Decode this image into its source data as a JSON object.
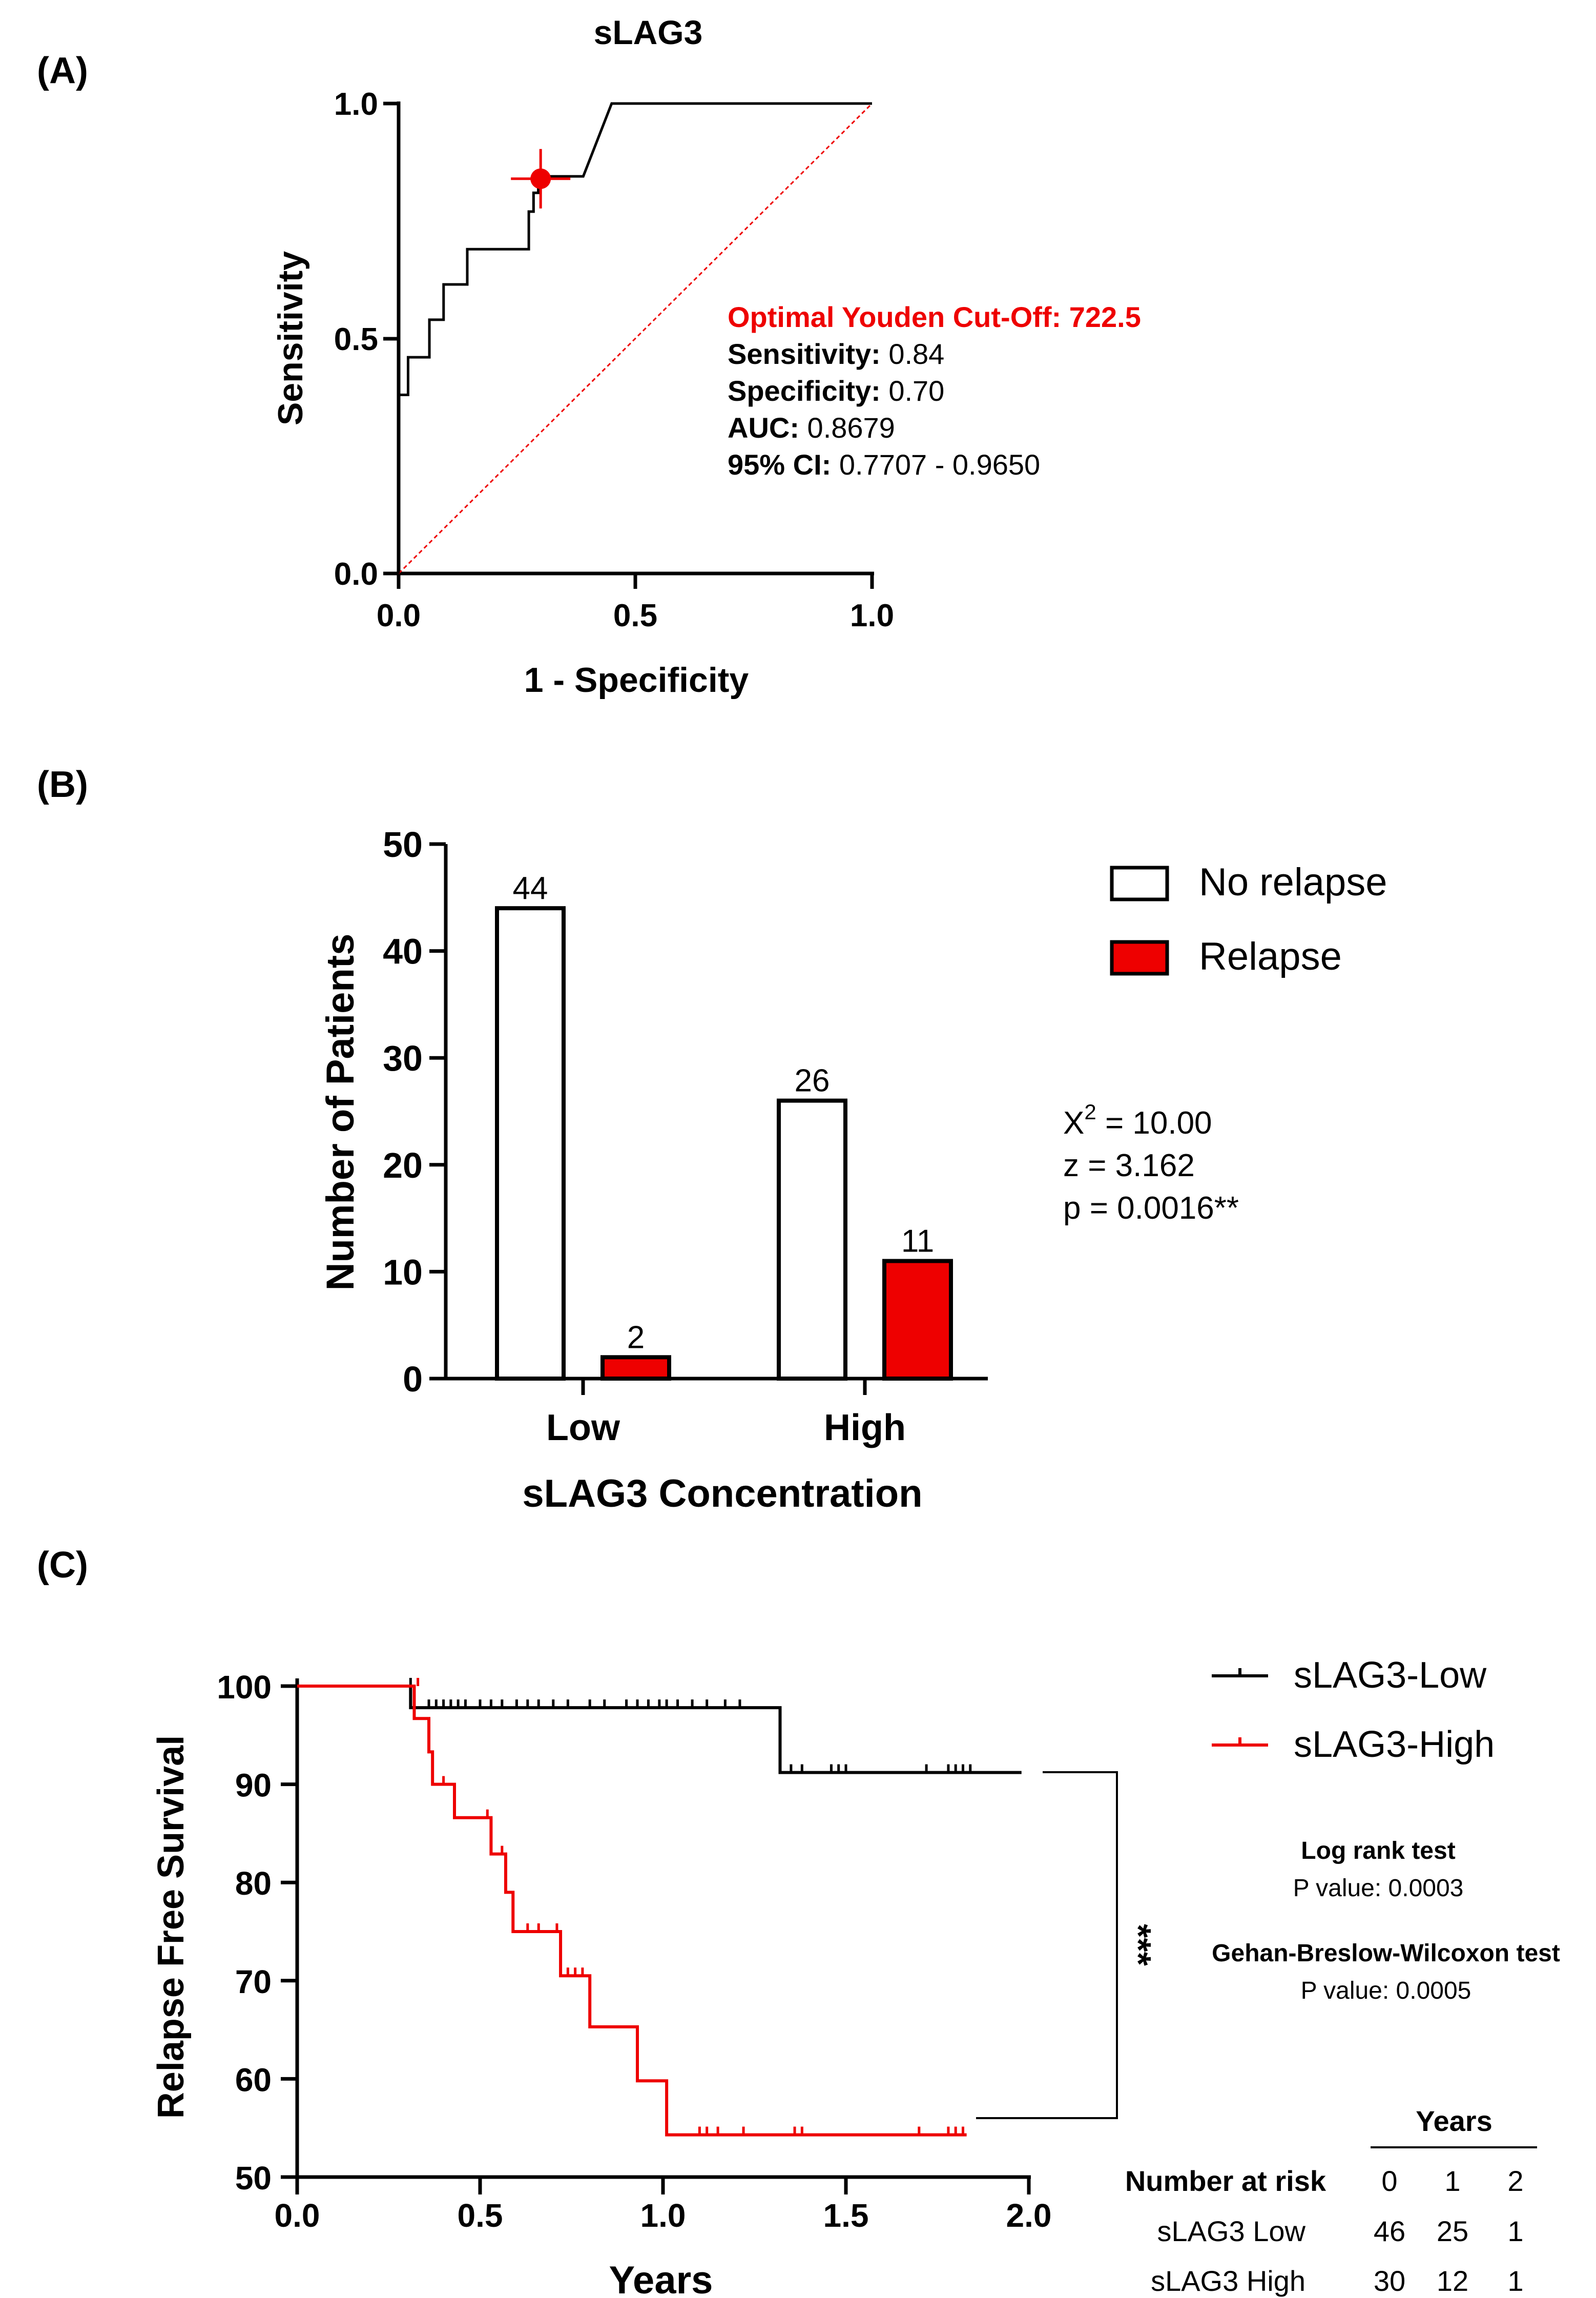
{
  "chart_data": [
    {
      "panel": "(A)",
      "type": "line",
      "title": "sLAG3",
      "xlabel": "1 - Specificity",
      "ylabel": "Sensitivity",
      "xlim": [
        0,
        1
      ],
      "ylim": [
        0,
        1
      ],
      "xticks": [
        "0.0",
        "0.5",
        "1.0"
      ],
      "yticks": [
        "0.0",
        "0.5",
        "1.0"
      ],
      "roc_curve": [
        [
          0,
          0
        ],
        [
          0,
          0.38
        ],
        [
          0.02,
          0.38
        ],
        [
          0.02,
          0.46
        ],
        [
          0.065,
          0.46
        ],
        [
          0.065,
          0.54
        ],
        [
          0.095,
          0.54
        ],
        [
          0.095,
          0.615
        ],
        [
          0.145,
          0.615
        ],
        [
          0.145,
          0.69
        ],
        [
          0.275,
          0.69
        ],
        [
          0.275,
          0.77
        ],
        [
          0.285,
          0.77
        ],
        [
          0.285,
          0.81
        ],
        [
          0.295,
          0.81
        ],
        [
          0.295,
          0.845
        ],
        [
          0.39,
          0.845
        ],
        [
          0.45,
          1.0
        ],
        [
          1.0,
          1.0
        ]
      ],
      "reference_line": [
        [
          0,
          0
        ],
        [
          1,
          1
        ]
      ],
      "optimal_point": {
        "x": 0.3,
        "y": 0.84
      },
      "annotation": {
        "cutoff": "Optimal Youden Cut-Off: 722.5",
        "sensitivity_label": "Sensitivity:",
        "sensitivity_value": "0.84",
        "specificity_label": "Specificity:",
        "specificity_value": "0.70",
        "auc_label": "AUC:",
        "auc_value": "0.8679",
        "ci_label": "95% CI:",
        "ci_value": "0.7707 - 0.9650"
      },
      "colors": {
        "curve": "#000000",
        "reference": "#ee0000",
        "point": "#ee0000",
        "cutoff_text": "#ee0000"
      }
    },
    {
      "panel": "(B)",
      "type": "bar",
      "categories": [
        "Low",
        "High"
      ],
      "series": [
        {
          "name": "No relapse",
          "values": [
            44,
            26
          ],
          "color": "#ffffff"
        },
        {
          "name": "Relapse",
          "values": [
            2,
            11
          ],
          "color": "#ee0000"
        }
      ],
      "data_labels": [
        [
          "44",
          "2"
        ],
        [
          "26",
          "11"
        ]
      ],
      "xlabel": "sLAG3 Concentration",
      "ylabel": "Number of Patients",
      "ylim": [
        0,
        50
      ],
      "yticks": [
        "0",
        "10",
        "20",
        "30",
        "40",
        "50"
      ],
      "legend_position": "top-right",
      "stats": {
        "chi_prefix": "X",
        "chi_sup": "2",
        "chi_value": " = 10.00",
        "z": "z = 3.162",
        "p": "p = 0.0016**"
      }
    },
    {
      "panel": "(C)",
      "type": "line",
      "xlabel": "Years",
      "ylabel": "Relapse Free Survival",
      "xlim": [
        0,
        2
      ],
      "ylim": [
        50,
        100
      ],
      "xticks": [
        "0.0",
        "0.5",
        "1.0",
        "1.5",
        "2.0"
      ],
      "yticks": [
        "50",
        "60",
        "70",
        "80",
        "90",
        "100"
      ],
      "series": [
        {
          "name": "sLAG3-Low",
          "color": "#000000",
          "steps": [
            [
              0,
              100
            ],
            [
              0.31,
              100
            ],
            [
              0.31,
              97.8
            ],
            [
              1.32,
              97.8
            ],
            [
              1.32,
              91.2
            ],
            [
              1.98,
              91.2
            ]
          ],
          "censors": [
            [
              0.31,
              100
            ],
            [
              0.36,
              97.8
            ],
            [
              0.38,
              97.8
            ],
            [
              0.4,
              97.8
            ],
            [
              0.42,
              97.8
            ],
            [
              0.44,
              97.8
            ],
            [
              0.46,
              97.8
            ],
            [
              0.5,
              97.8
            ],
            [
              0.53,
              97.8
            ],
            [
              0.56,
              97.8
            ],
            [
              0.6,
              97.8
            ],
            [
              0.63,
              97.8
            ],
            [
              0.66,
              97.8
            ],
            [
              0.7,
              97.8
            ],
            [
              0.74,
              97.8
            ],
            [
              0.8,
              97.8
            ],
            [
              0.84,
              97.8
            ],
            [
              0.9,
              97.8
            ],
            [
              0.93,
              97.8
            ],
            [
              0.96,
              97.8
            ],
            [
              0.99,
              97.8
            ],
            [
              1.01,
              97.8
            ],
            [
              1.04,
              97.8
            ],
            [
              1.08,
              97.8
            ],
            [
              1.12,
              97.8
            ],
            [
              1.17,
              97.8
            ],
            [
              1.21,
              97.8
            ],
            [
              1.35,
              91.2
            ],
            [
              1.38,
              91.2
            ],
            [
              1.46,
              91.2
            ],
            [
              1.48,
              91.2
            ],
            [
              1.5,
              91.2
            ],
            [
              1.72,
              91.2
            ],
            [
              1.78,
              91.2
            ],
            [
              1.8,
              91.2
            ],
            [
              1.82,
              91.2
            ],
            [
              1.84,
              91.2
            ]
          ]
        },
        {
          "name": "sLAG3-High",
          "color": "#ee0000",
          "steps": [
            [
              0,
              100
            ],
            [
              0.32,
              100
            ],
            [
              0.32,
              96.7
            ],
            [
              0.36,
              96.7
            ],
            [
              0.36,
              93.3
            ],
            [
              0.37,
              93.3
            ],
            [
              0.37,
              90.0
            ],
            [
              0.43,
              90.0
            ],
            [
              0.43,
              86.6
            ],
            [
              0.53,
              86.6
            ],
            [
              0.53,
              82.9
            ],
            [
              0.57,
              82.9
            ],
            [
              0.57,
              79.0
            ],
            [
              0.59,
              79.0
            ],
            [
              0.59,
              75.0
            ],
            [
              0.72,
              75.0
            ],
            [
              0.72,
              70.5
            ],
            [
              0.8,
              70.5
            ],
            [
              0.8,
              65.3
            ],
            [
              0.93,
              65.3
            ],
            [
              0.93,
              59.8
            ],
            [
              1.01,
              59.8
            ],
            [
              1.01,
              54.3
            ],
            [
              1.83,
              54.3
            ]
          ],
          "censors": [
            [
              0.33,
              100
            ],
            [
              0.37,
              91.5
            ],
            [
              0.4,
              90.0
            ],
            [
              0.52,
              86.6
            ],
            [
              0.56,
              82.9
            ],
            [
              0.63,
              75.0
            ],
            [
              0.66,
              75.0
            ],
            [
              0.71,
              75.0
            ],
            [
              0.74,
              70.5
            ],
            [
              0.76,
              70.5
            ],
            [
              0.78,
              70.5
            ],
            [
              1.1,
              54.3
            ],
            [
              1.12,
              54.3
            ],
            [
              1.15,
              54.3
            ],
            [
              1.22,
              54.3
            ],
            [
              1.36,
              54.3
            ],
            [
              1.38,
              54.3
            ],
            [
              1.7,
              54.3
            ],
            [
              1.78,
              54.3
            ],
            [
              1.8,
              54.3
            ],
            [
              1.82,
              54.3
            ]
          ]
        }
      ],
      "significance": "***",
      "tests": {
        "logrank_title": "Log rank test",
        "logrank_p": "P value: 0.0003",
        "gbw_title": "Gehan-Breslow-Wilcoxon test",
        "gbw_p": "P value: 0.0005"
      },
      "risk_table": {
        "header": "Years",
        "label": "Number at risk",
        "years": [
          "0",
          "1",
          "2"
        ],
        "rows": [
          {
            "name": "sLAG3 Low",
            "values": [
              "46",
              "25",
              "1"
            ]
          },
          {
            "name": "sLAG3 High",
            "values": [
              "30",
              "12",
              "1"
            ]
          }
        ]
      }
    }
  ]
}
